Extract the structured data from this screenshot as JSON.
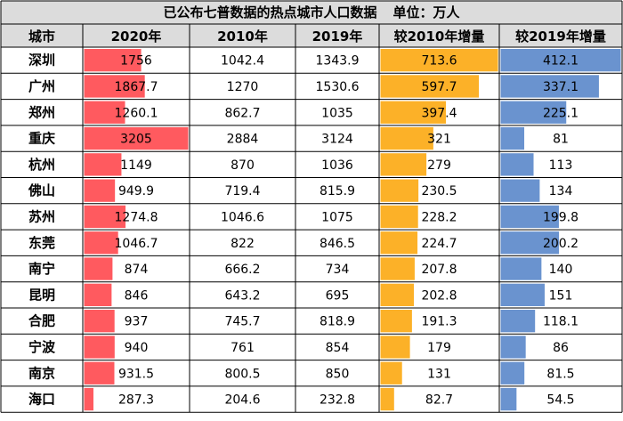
{
  "chart_data": {
    "type": "table",
    "title": "已公布七普数据的热点城市人口数据",
    "unit": "单位：万人",
    "headers": [
      "城市",
      "2020年",
      "2010年",
      "2019年",
      "较2010年增量",
      "较2019年增量"
    ],
    "rows": [
      {
        "city": "深圳",
        "p2020": "1756",
        "p2010": "1042.4",
        "p2019": "1343.9",
        "inc2010": "713.6",
        "inc2019": "412.1"
      },
      {
        "city": "广州",
        "p2020": "1867.7",
        "p2010": "1270",
        "p2019": "1530.6",
        "inc2010": "597.7",
        "inc2019": "337.1"
      },
      {
        "city": "郑州",
        "p2020": "1260.1",
        "p2010": "862.7",
        "p2019": "1035",
        "inc2010": "397.4",
        "inc2019": "225.1"
      },
      {
        "city": "重庆",
        "p2020": "3205",
        "p2010": "2884",
        "p2019": "3124",
        "inc2010": "321",
        "inc2019": "81"
      },
      {
        "city": "杭州",
        "p2020": "1149",
        "p2010": "870",
        "p2019": "1036",
        "inc2010": "279",
        "inc2019": "113"
      },
      {
        "city": "佛山",
        "p2020": "949.9",
        "p2010": "719.4",
        "p2019": "815.9",
        "inc2010": "230.5",
        "inc2019": "134"
      },
      {
        "city": "苏州",
        "p2020": "1274.8",
        "p2010": "1046.6",
        "p2019": "1075",
        "inc2010": "228.2",
        "inc2019": "199.8"
      },
      {
        "city": "东莞",
        "p2020": "1046.7",
        "p2010": "822",
        "p2019": "846.5",
        "inc2010": "224.7",
        "inc2019": "200.2"
      },
      {
        "city": "南宁",
        "p2020": "874",
        "p2010": "666.2",
        "p2019": "734",
        "inc2010": "207.8",
        "inc2019": "140"
      },
      {
        "city": "昆明",
        "p2020": "846",
        "p2010": "643.2",
        "p2019": "695",
        "inc2010": "202.8",
        "inc2019": "151"
      },
      {
        "city": "合肥",
        "p2020": "937",
        "p2010": "745.7",
        "p2019": "818.9",
        "inc2010": "191.3",
        "inc2019": "118.1"
      },
      {
        "city": "宁波",
        "p2020": "940",
        "p2010": "761",
        "p2019": "854",
        "inc2010": "179",
        "inc2019": "86"
      },
      {
        "city": "南京",
        "p2020": "931.5",
        "p2010": "800.5",
        "p2019": "850",
        "inc2010": "131",
        "inc2019": "81.5"
      },
      {
        "city": "海口",
        "p2020": "287.3",
        "p2010": "204.6",
        "p2019": "232.8",
        "inc2010": "82.7",
        "inc2019": "54.5"
      }
    ],
    "data_bars": {
      "p2020": {
        "color": "#ff5a5f",
        "max": 3205
      },
      "inc2010": {
        "color": "#fcb128",
        "max": 713.6
      },
      "inc2019": {
        "color": "#6a93cf",
        "max": 412.1
      }
    },
    "colors": {
      "header_bg": "#dcdcdc",
      "border": "#000000"
    }
  }
}
